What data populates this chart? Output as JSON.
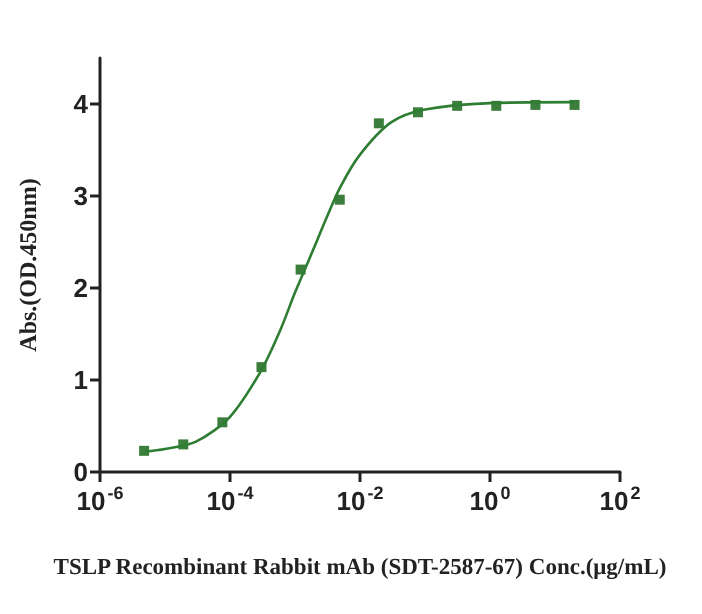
{
  "chart_data": {
    "type": "scatter",
    "xlabel": "TSLP Recombinant Rabbit mAb (SDT-2587-67) Conc.(μg/mL)",
    "ylabel": "Abs.(OD.450nm)",
    "log": "x",
    "grid": false,
    "marker": "square",
    "xlim": [
      1e-06,
      100
    ],
    "xticks": [
      {
        "value": 1e-06,
        "label": "10$^{-6}$"
      },
      {
        "value": 0.0001,
        "label": "10$^{-4}$"
      },
      {
        "value": 0.01,
        "label": "10$^{-2}$"
      },
      {
        "value": 1,
        "label": "10$^{0}$"
      },
      {
        "value": 100,
        "label": "10$^{2}$"
      }
    ],
    "ylim": [
      0,
      4.5
    ],
    "yticks": [
      0,
      1,
      2,
      3,
      4
    ],
    "series": [
      {
        "color": "#0b5e0b",
        "x": [
          4.77e-06,
          1.91e-05,
          7.63e-05,
          0.000305,
          0.00122,
          0.00488,
          0.0195,
          0.078,
          0.3125,
          1.25,
          5,
          20
        ],
        "values": [
          0.23,
          0.3,
          0.54,
          1.14,
          2.2,
          2.96,
          3.79,
          3.91,
          3.98,
          3.98,
          3.99,
          3.99
        ]
      },
      {
        "type": "line",
        "color": "#2e7d32",
        "marker": "none",
        "x": [
          4.77e-06,
          1e-05,
          3e-05,
          0.0001,
          0.0003,
          0.0006,
          0.001,
          0.002,
          0.003,
          0.005,
          0.01,
          0.03,
          0.1,
          1,
          20
        ],
        "values": [
          0.22,
          0.25,
          0.33,
          0.6,
          1.1,
          1.55,
          1.95,
          2.45,
          2.75,
          3.1,
          3.45,
          3.8,
          3.94,
          4.01,
          4.02
        ]
      }
    ]
  }
}
